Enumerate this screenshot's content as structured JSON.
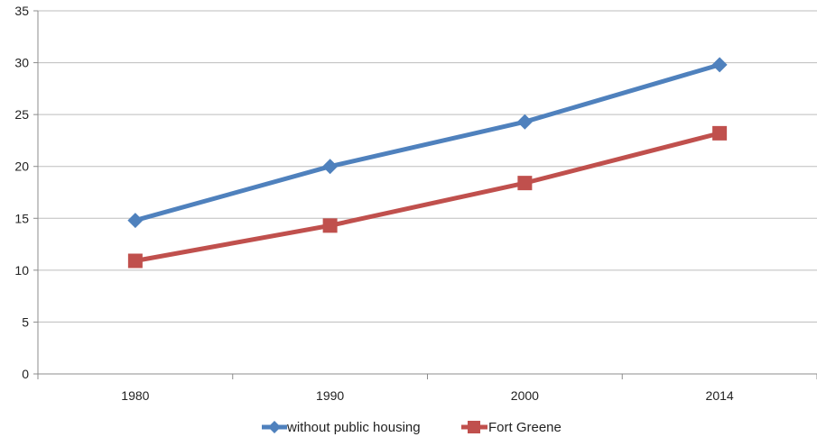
{
  "chart_data": {
    "type": "line",
    "categories": [
      "1980",
      "1990",
      "2000",
      "2014"
    ],
    "ylim": [
      0,
      35
    ],
    "yticks": [
      0,
      5,
      10,
      15,
      20,
      25,
      30,
      35
    ],
    "grid": true,
    "legend_position": "bottom",
    "series": [
      {
        "name": "without public housing",
        "values": [
          14.8,
          20.0,
          24.3,
          29.8
        ],
        "color": "#4f81bd",
        "marker": "diamond"
      },
      {
        "name": "Fort Greene",
        "values": [
          10.9,
          14.3,
          18.4,
          23.2
        ],
        "color": "#c0504d",
        "marker": "square"
      }
    ]
  }
}
